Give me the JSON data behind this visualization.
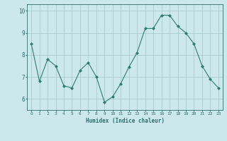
{
  "x": [
    0,
    1,
    2,
    3,
    4,
    5,
    6,
    7,
    8,
    9,
    10,
    11,
    12,
    13,
    14,
    15,
    16,
    17,
    18,
    19,
    20,
    21,
    22,
    23
  ],
  "y": [
    8.5,
    6.8,
    7.8,
    7.5,
    6.6,
    6.5,
    7.3,
    7.65,
    7.0,
    5.85,
    6.1,
    6.7,
    7.45,
    8.1,
    9.2,
    9.2,
    9.8,
    9.8,
    9.3,
    9.0,
    8.5,
    7.5,
    6.9,
    6.5
  ],
  "xlabel": "Humidex (Indice chaleur)",
  "line_color": "#2e7d6e",
  "marker": "D",
  "marker_size": 2,
  "bg_color": "#cce8ec",
  "grid_color": "#aacccc",
  "tick_color": "#2e6e6e",
  "ylim": [
    5.5,
    10.3
  ],
  "xlim": [
    -0.5,
    23.5
  ],
  "yticks": [
    6,
    7,
    8,
    9,
    10
  ],
  "xticks": [
    0,
    1,
    2,
    3,
    4,
    5,
    6,
    7,
    8,
    9,
    10,
    11,
    12,
    13,
    14,
    15,
    16,
    17,
    18,
    19,
    20,
    21,
    22,
    23
  ]
}
